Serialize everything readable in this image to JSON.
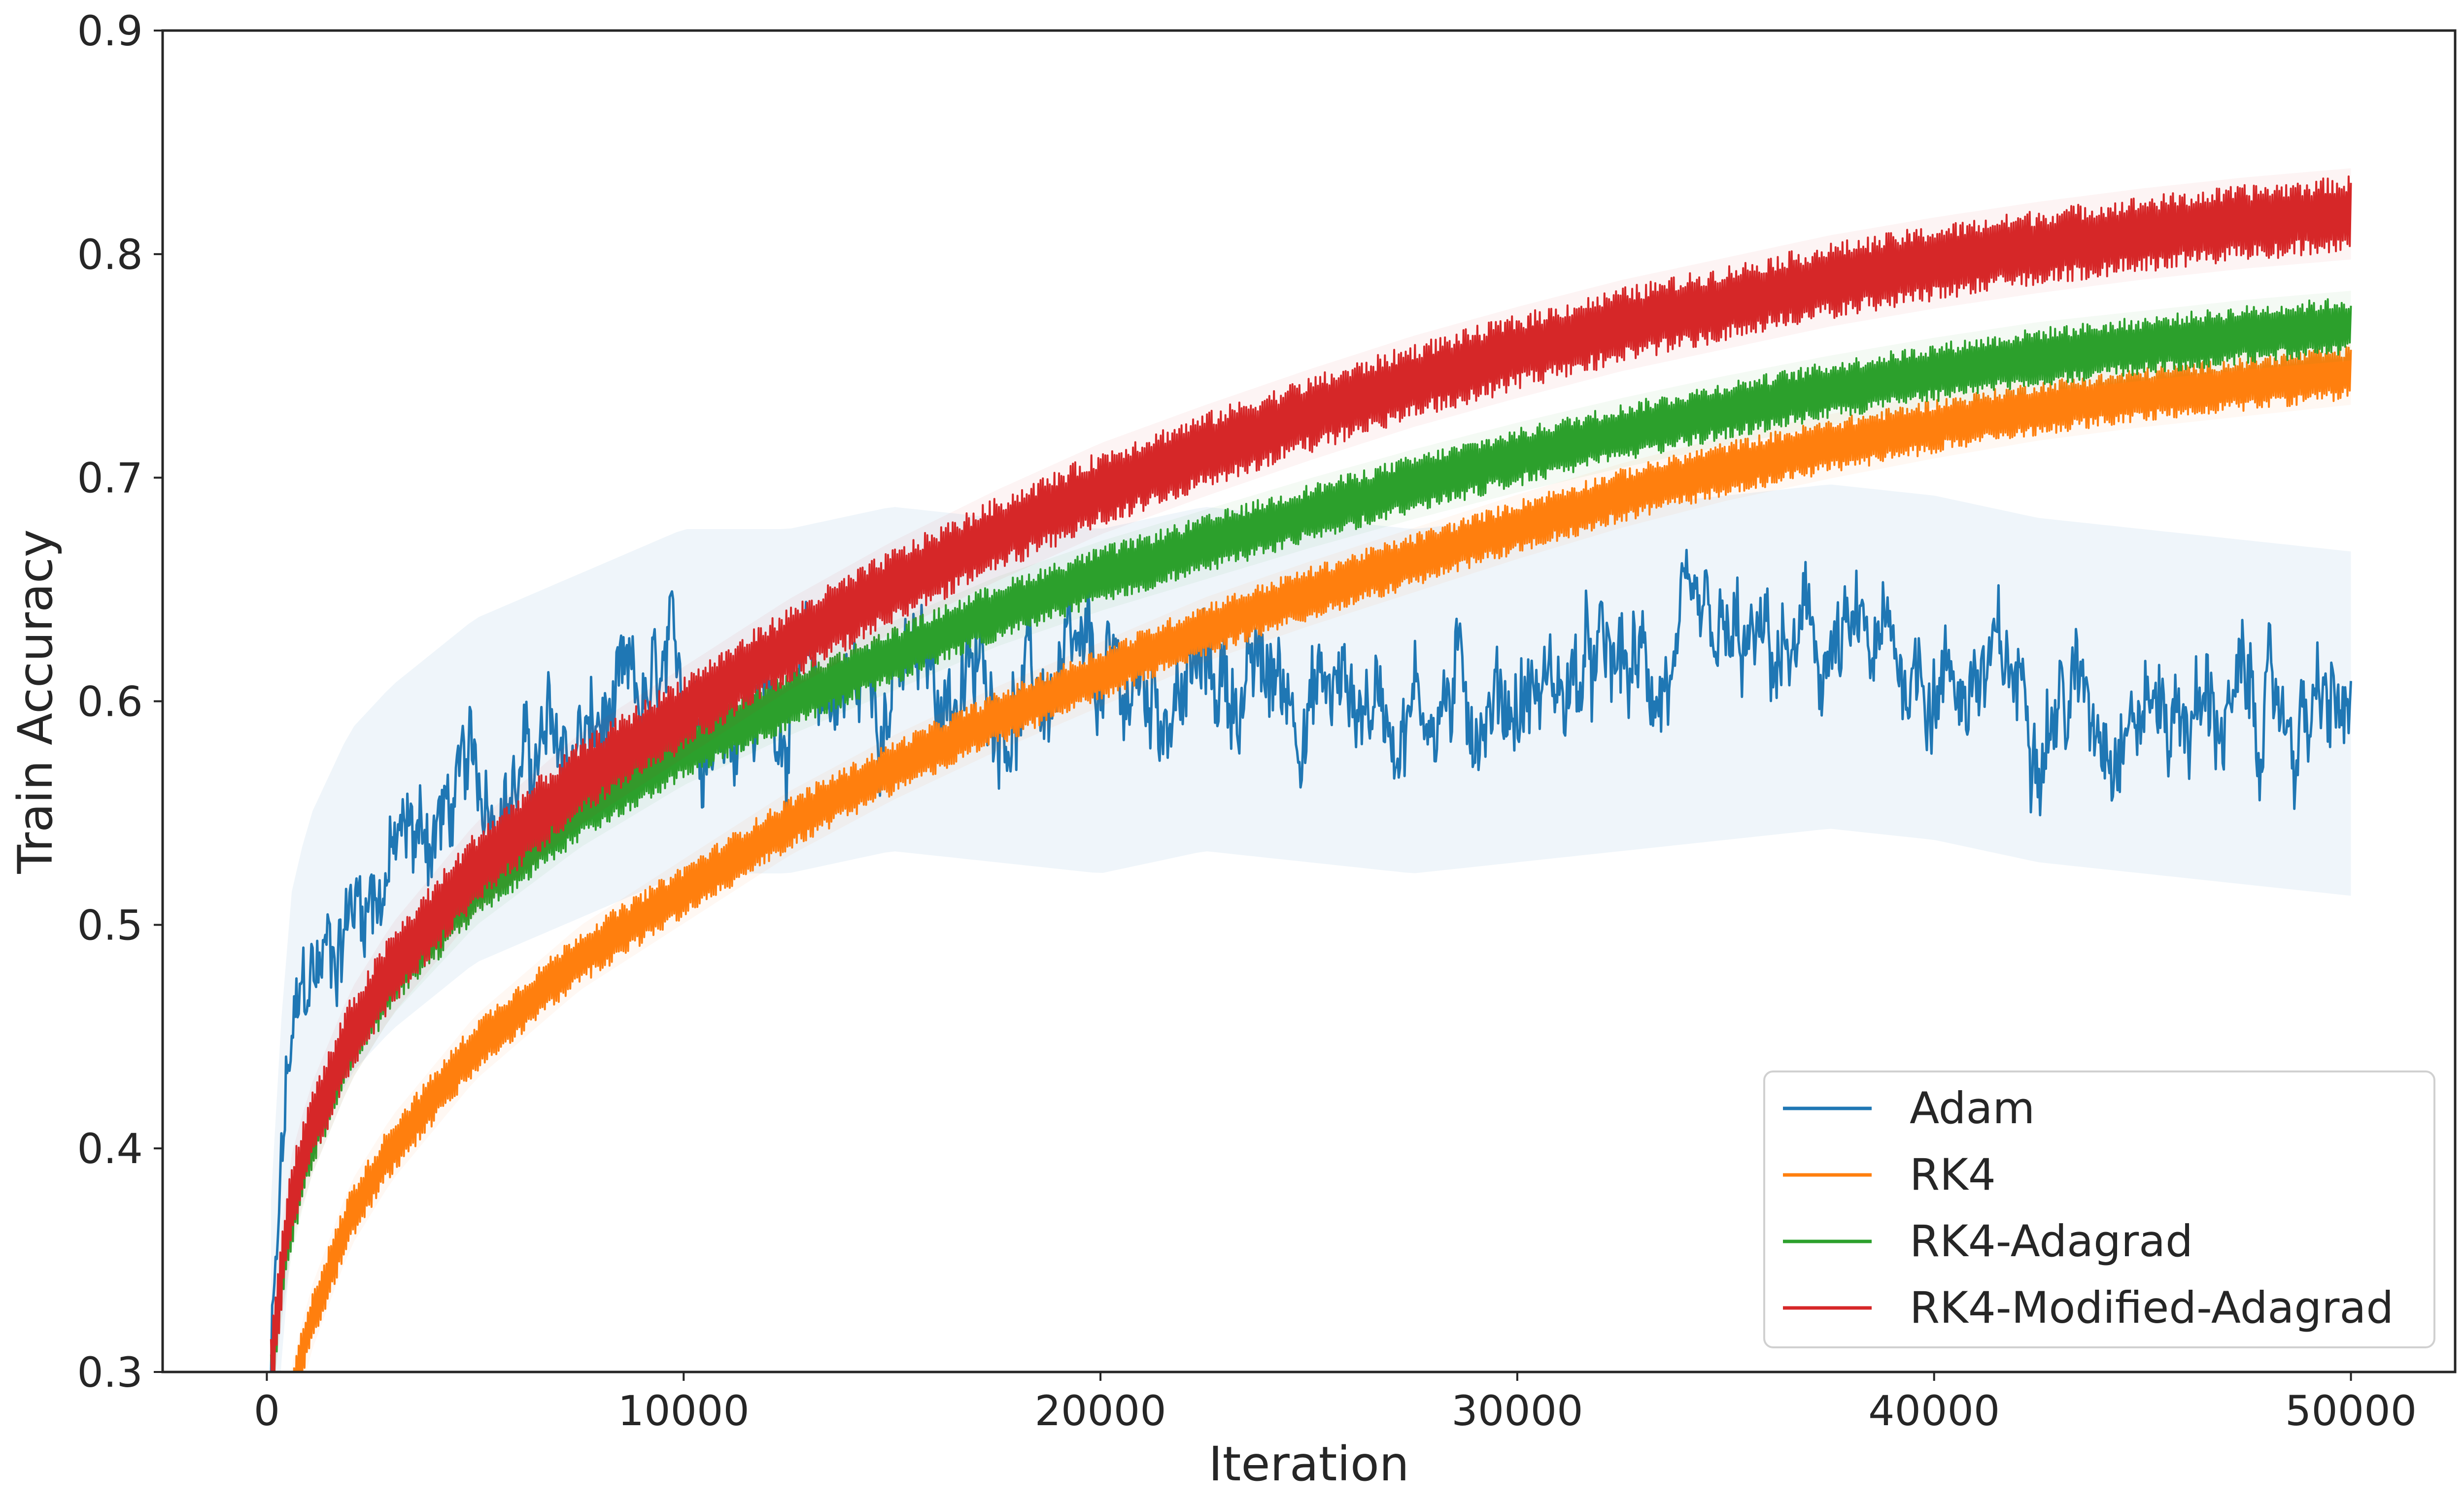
{
  "chart_data": {
    "type": "line",
    "title": "",
    "xlabel": "Iteration",
    "ylabel": "Train Accuracy",
    "xlim": [
      -2500,
      52500
    ],
    "ylim": [
      0.3,
      0.9
    ],
    "xticks": [
      0,
      10000,
      20000,
      30000,
      40000,
      50000
    ],
    "xtick_labels": [
      "0",
      "10000",
      "20000",
      "30000",
      "40000",
      "50000"
    ],
    "yticks": [
      0.3,
      0.4,
      0.5,
      0.6,
      0.7,
      0.8,
      0.9
    ],
    "ytick_labels": [
      "0.3",
      "0.4",
      "0.5",
      "0.6",
      "0.7",
      "0.8",
      "0.9"
    ],
    "grid": false,
    "legend_position": "bottom-right",
    "x": [
      100,
      500,
      1000,
      2000,
      3000,
      5000,
      7500,
      10000,
      12500,
      15000,
      17500,
      20000,
      22500,
      25000,
      27500,
      30000,
      32500,
      35000,
      37500,
      40000,
      42500,
      45000,
      47500,
      50000
    ],
    "series": [
      {
        "name": "Adam",
        "color": "#1f77b4",
        "band_width": 0.055,
        "values": [
          0.3,
          0.43,
          0.47,
          0.51,
          0.53,
          0.56,
          0.58,
          0.6,
          0.6,
          0.61,
          0.605,
          0.6,
          0.61,
          0.605,
          0.6,
          0.605,
          0.61,
          0.615,
          0.62,
          0.615,
          0.605,
          0.6,
          0.595,
          0.59
        ]
      },
      {
        "name": "RK4",
        "color": "#ff7f0e",
        "band_width": 0.012,
        "values": [
          0.24,
          0.28,
          0.32,
          0.37,
          0.4,
          0.445,
          0.485,
          0.515,
          0.545,
          0.57,
          0.592,
          0.612,
          0.632,
          0.648,
          0.663,
          0.678,
          0.692,
          0.704,
          0.714,
          0.723,
          0.731,
          0.737,
          0.742,
          0.747
        ]
      },
      {
        "name": "RK4-Adagrad",
        "color": "#2ca02c",
        "band_width": 0.013,
        "values": [
          0.3,
          0.36,
          0.4,
          0.445,
          0.475,
          0.515,
          0.55,
          0.578,
          0.6,
          0.62,
          0.64,
          0.656,
          0.67,
          0.684,
          0.697,
          0.709,
          0.72,
          0.73,
          0.739,
          0.747,
          0.754,
          0.759,
          0.764,
          0.768
        ]
      },
      {
        "name": "RK4-Modified-Adagrad",
        "color": "#d62728",
        "band_width": 0.017,
        "values": [
          0.3,
          0.37,
          0.405,
          0.45,
          0.48,
          0.525,
          0.565,
          0.595,
          0.625,
          0.651,
          0.674,
          0.695,
          0.712,
          0.728,
          0.743,
          0.756,
          0.768,
          0.778,
          0.788,
          0.796,
          0.803,
          0.809,
          0.814,
          0.818
        ]
      }
    ]
  }
}
